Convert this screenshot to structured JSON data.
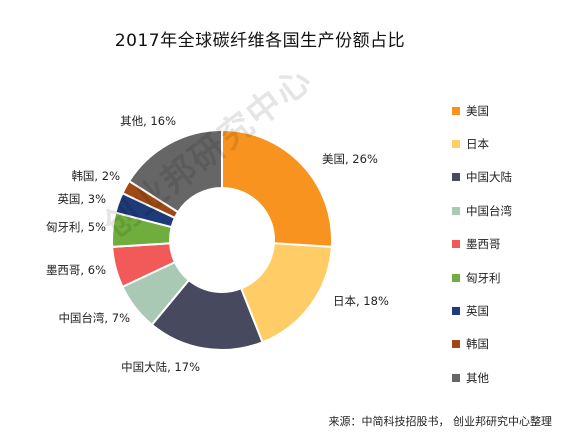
{
  "chart_data": {
    "type": "pie",
    "style": "donut",
    "title": "2017年全球碳纤维各国生产份额占比",
    "legend_position": "right",
    "categories": [
      "美国",
      "日本",
      "中国大陆",
      "中国台湾",
      "墨西哥",
      "匈牙利",
      "英国",
      "韩国",
      "其他"
    ],
    "values": [
      26,
      18,
      17,
      7,
      6,
      5,
      3,
      2,
      16
    ],
    "labels": [
      "美国, 26%",
      "日本, 18%",
      "中国大陆, 17%",
      "中国台湾, 7%",
      "墨西哥, 6%",
      "匈牙利, 5%",
      "英国, 3%",
      "韩国, 2%",
      "其他, 16%"
    ],
    "colors": [
      "#F7931E",
      "#FFCC66",
      "#474A5E",
      "#A9C9B5",
      "#F25A5A",
      "#6FAE3E",
      "#1E3A78",
      "#9E4A12",
      "#666666"
    ]
  },
  "source": "来源：中简科技招股书， 创业邦研究中心整理",
  "watermark": "创业邦研究中心"
}
